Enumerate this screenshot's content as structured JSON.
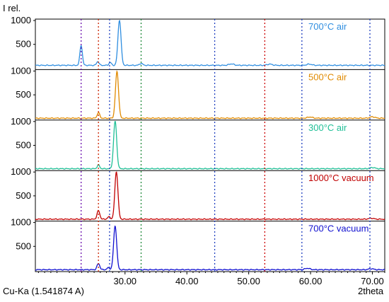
{
  "chart_data": {
    "type": "line",
    "ylabel": "I rel.",
    "xlabel": "2theta",
    "wavelength_label": "Cu-Ka (1.541874 A)",
    "xlim": [
      15.5,
      72
    ],
    "ylim": [
      0,
      1000
    ],
    "xticks": [
      30,
      40,
      50,
      60,
      70
    ],
    "xtick_labels": [
      "30.00",
      "40.00",
      "50.00",
      "60.00",
      "70.00"
    ],
    "yticks": [
      500,
      1000
    ],
    "stacked_panels": true,
    "grid": false,
    "reference_lines": [
      {
        "x": 22.9,
        "color": "#6a0dad"
      },
      {
        "x": 25.7,
        "color": "#cc2200"
      },
      {
        "x": 27.5,
        "color": "#1f3fbf"
      },
      {
        "x": 32.6,
        "color": "#1f8a3a"
      },
      {
        "x": 44.5,
        "color": "#1f3fbf"
      },
      {
        "x": 52.6,
        "color": "#cc0000"
      },
      {
        "x": 58.6,
        "color": "#1f3fbf"
      },
      {
        "x": 69.6,
        "color": "#1f3fbf"
      }
    ],
    "series": [
      {
        "name": "700°C air",
        "color": "#2f8ee0",
        "baseline": 60,
        "peaks": [
          {
            "x": 22.9,
            "y": 420,
            "w": 0.2
          },
          {
            "x": 25.6,
            "y": 80,
            "w": 0.2
          },
          {
            "x": 27.6,
            "y": 60,
            "w": 0.2
          },
          {
            "x": 29.1,
            "y": 950,
            "w": 0.25
          },
          {
            "x": 32.6,
            "y": 40,
            "w": 0.25
          },
          {
            "x": 47.2,
            "y": 30,
            "w": 0.4
          },
          {
            "x": 53.4,
            "y": 25,
            "w": 0.4
          },
          {
            "x": 59.8,
            "y": 25,
            "w": 0.4
          }
        ]
      },
      {
        "name": "500°C air",
        "color": "#e08a00",
        "baseline": 10,
        "peaks": [
          {
            "x": 25.7,
            "y": 120,
            "w": 0.2
          },
          {
            "x": 28.7,
            "y": 980,
            "w": 0.25
          },
          {
            "x": 59.9,
            "y": 25,
            "w": 0.4
          },
          {
            "x": 70.0,
            "y": 30,
            "w": 0.4
          }
        ]
      },
      {
        "name": "300°C air",
        "color": "#1fbf96",
        "baseline": 10,
        "peaks": [
          {
            "x": 25.7,
            "y": 80,
            "w": 0.2
          },
          {
            "x": 28.4,
            "y": 1000,
            "w": 0.25
          },
          {
            "x": 70.0,
            "y": 25,
            "w": 0.4
          }
        ]
      },
      {
        "name": "1000°C vacuum",
        "color": "#c00000",
        "baseline": 10,
        "peaks": [
          {
            "x": 25.7,
            "y": 180,
            "w": 0.22
          },
          {
            "x": 27.4,
            "y": 50,
            "w": 0.22
          },
          {
            "x": 28.6,
            "y": 1000,
            "w": 0.25
          },
          {
            "x": 69.8,
            "y": 20,
            "w": 0.4
          }
        ]
      },
      {
        "name": "700°C vacuum",
        "color": "#1010d0",
        "baseline": 10,
        "peaks": [
          {
            "x": 25.7,
            "y": 130,
            "w": 0.22
          },
          {
            "x": 27.3,
            "y": 40,
            "w": 0.22
          },
          {
            "x": 28.4,
            "y": 920,
            "w": 0.25
          },
          {
            "x": 59.5,
            "y": 30,
            "w": 0.4
          },
          {
            "x": 69.8,
            "y": 20,
            "w": 0.4
          }
        ]
      }
    ]
  }
}
